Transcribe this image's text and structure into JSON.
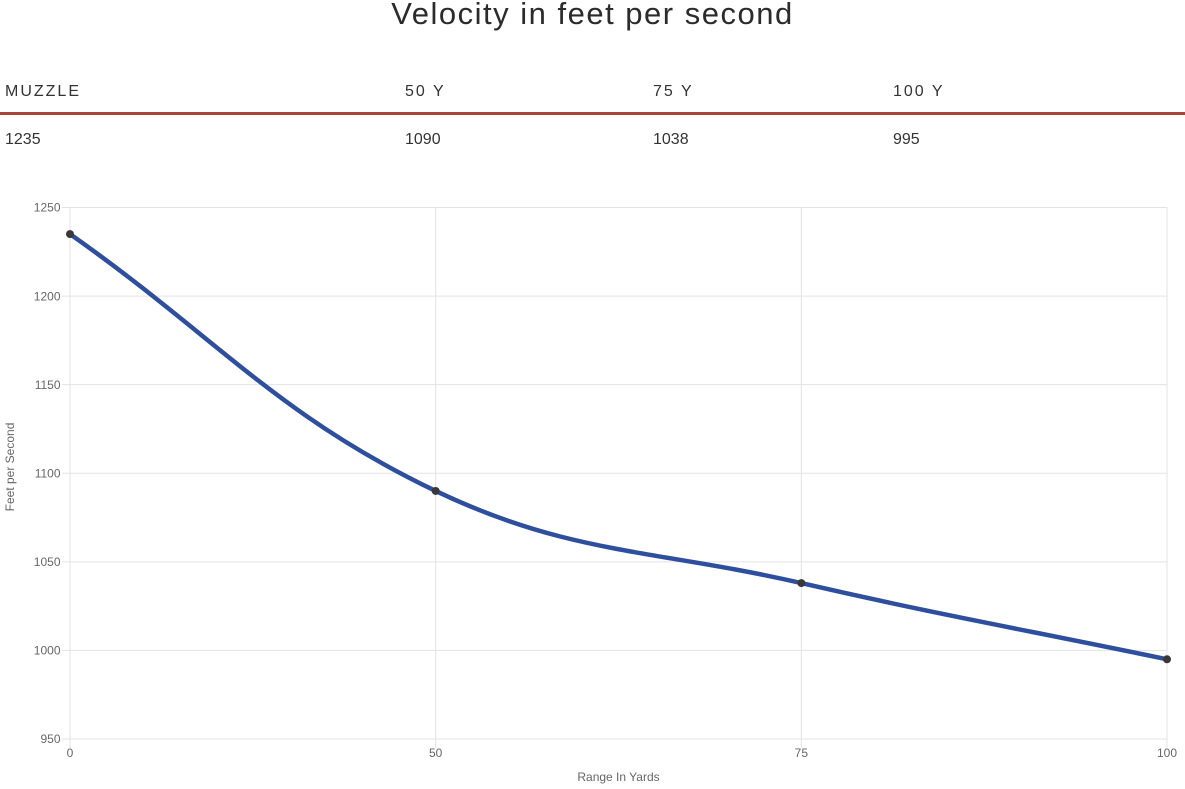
{
  "title": "Velocity in feet per second",
  "colors": {
    "divider_red": "#a94438",
    "line_blue": "#2e4f9e",
    "point_gray": "#383838",
    "grid": "#e3e3e3",
    "tick_label": "#666666"
  },
  "table": {
    "columns": [
      {
        "header": "MUZZLE",
        "value": "1235"
      },
      {
        "header": "50 Y",
        "value": "1090"
      },
      {
        "header": "75 Y",
        "value": "1038"
      },
      {
        "header": "100 Y",
        "value": "995"
      }
    ]
  },
  "chart_data": {
    "type": "line",
    "categories": [
      "0",
      "50",
      "75",
      "100"
    ],
    "values": [
      1235,
      1090,
      1038,
      995
    ],
    "title": "",
    "xlabel": "Range In Yards",
    "ylabel": "Feet per Second",
    "ylim": [
      950,
      1250
    ],
    "y_ticks": [
      950,
      1000,
      1050,
      1100,
      1150,
      1200,
      1250
    ],
    "grid": true,
    "legend": false
  }
}
